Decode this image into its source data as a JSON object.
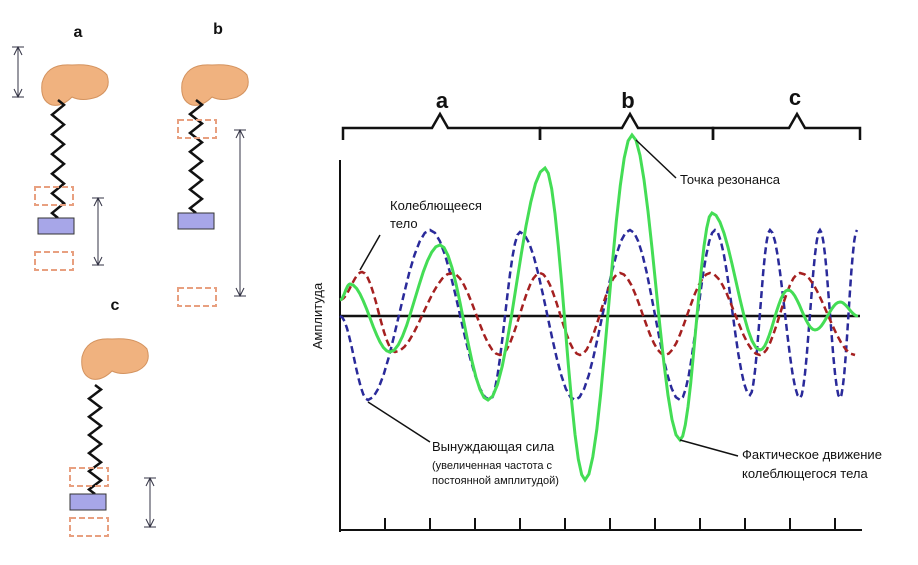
{
  "panels": [
    {
      "label": "a"
    },
    {
      "label": "b"
    },
    {
      "label": "c"
    }
  ],
  "graph": {
    "y_axis_label": "Амплитуда",
    "sections": [
      "a",
      "b",
      "c"
    ],
    "annotations": {
      "resonance": "Точка резонанса",
      "body": [
        "Колеблющееся",
        "тело"
      ],
      "force": [
        "Вынуждающая сила",
        "(увеличенная частота с",
        "постоянной амплитудой)"
      ],
      "motion": [
        "Фактическое движение",
        "колеблющегося тела"
      ]
    }
  }
}
